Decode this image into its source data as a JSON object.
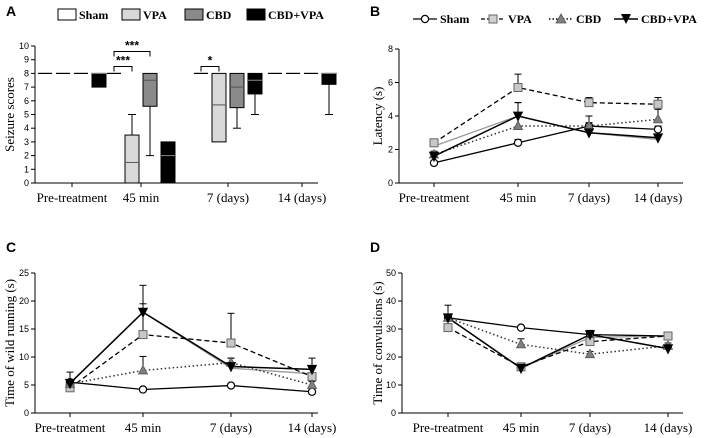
{
  "colors": {
    "sham": "#000000",
    "vpa": "#b8b8b8",
    "cbd": "#7a7a7a",
    "cbdvpa": "#000000",
    "vpa_line": "#000000",
    "cbd_line": "#444444"
  },
  "groups": [
    "Sham",
    "VPA",
    "CBD",
    "CBD+VPA"
  ],
  "legend_lines": [
    "Sham",
    "VPA",
    "CBD",
    "CBD+VPA"
  ],
  "categories": [
    "Pre-treatment",
    "45 min",
    "7 (days)",
    "14 (days)"
  ],
  "chart_data": [
    {
      "panel": "A",
      "type": "box",
      "ylabel": "Seizure scores",
      "ylim": [
        0,
        10
      ],
      "yticks": [
        0,
        1,
        2,
        3,
        4,
        5,
        6,
        7,
        8,
        9,
        10
      ],
      "boxes": [
        [
          {
            "min": 8,
            "q1": 8,
            "median": 8,
            "q3": 8,
            "max": 8
          },
          {
            "min": 8,
            "q1": 8,
            "median": 8,
            "q3": 8,
            "max": 8
          },
          {
            "min": 8,
            "q1": 8,
            "median": 8,
            "q3": 8,
            "max": 8
          },
          {
            "min": 7,
            "q1": 7,
            "median": 8,
            "q3": 8,
            "max": 8
          }
        ],
        [
          {
            "min": 8,
            "q1": 8,
            "median": 8,
            "q3": 8,
            "max": 8
          },
          {
            "min": 0,
            "q1": 0,
            "median": 1.5,
            "q3": 3.5,
            "max": 5
          },
          {
            "min": 2,
            "q1": 5.6,
            "median": 7.5,
            "q3": 8,
            "max": 8
          },
          {
            "min": 0,
            "q1": 0,
            "median": 2,
            "q3": 3,
            "max": 3
          }
        ],
        [
          {
            "min": 8,
            "q1": 8,
            "median": 8,
            "q3": 8,
            "max": 8
          },
          {
            "min": 3,
            "q1": 3,
            "median": 5.7,
            "q3": 8,
            "max": 8
          },
          {
            "min": 4,
            "q1": 5.5,
            "median": 7,
            "q3": 8,
            "max": 8
          },
          {
            "min": 5,
            "q1": 6.5,
            "median": 7.5,
            "q3": 8,
            "max": 8
          }
        ],
        [
          {
            "min": 8,
            "q1": 8,
            "median": 8,
            "q3": 8,
            "max": 8
          },
          {
            "min": 8,
            "q1": 8,
            "median": 8,
            "q3": 8,
            "max": 8
          },
          {
            "min": 8,
            "q1": 8,
            "median": 8,
            "q3": 8,
            "max": 8
          },
          {
            "min": 5,
            "q1": 7.2,
            "median": 8,
            "q3": 8,
            "max": 8
          }
        ]
      ],
      "significance": [
        {
          "label": "***",
          "from_group": 0,
          "to_group": 1,
          "category": 1,
          "y": 8.5
        },
        {
          "label": "***",
          "from_group": 0,
          "to_group": 2,
          "category": 1,
          "y": 9.6
        },
        {
          "label": "*",
          "from_group": 0,
          "to_group": 1,
          "category": 2,
          "y": 8.5
        }
      ]
    },
    {
      "panel": "B",
      "type": "line",
      "ylabel": "Latency (s)",
      "ylim": [
        0,
        8
      ],
      "yticks": [
        0,
        2,
        4,
        6,
        8
      ],
      "series": [
        {
          "name": "Sham",
          "values": [
            1.2,
            2.4,
            3.4,
            3.2
          ],
          "err": [
            0.1,
            0.2,
            0.2,
            0.2
          ]
        },
        {
          "name": "VPA",
          "values": [
            2.4,
            5.7,
            4.8,
            4.7
          ],
          "err": [
            0.1,
            0.8,
            0.3,
            0.4
          ]
        },
        {
          "name": "CBD",
          "values": [
            1.7,
            3.4,
            3.4,
            3.8
          ],
          "err": [
            0.2,
            1.4,
            0.6,
            0.6
          ]
        },
        {
          "name": "CBD+VPA",
          "values": [
            1.6,
            4.0,
            3.0,
            2.7
          ],
          "err": [
            0.2,
            0.8,
            0.3,
            0.2
          ]
        }
      ],
      "grey_line": [
        2.2,
        4.0,
        3.0,
        2.6
      ]
    },
    {
      "panel": "C",
      "type": "line",
      "ylabel": "Time of  wild running (s)",
      "ylim": [
        0,
        25
      ],
      "yticks": [
        0,
        5,
        10,
        15,
        20,
        25
      ],
      "series": [
        {
          "name": "Sham",
          "values": [
            5.5,
            4.2,
            4.9,
            3.8
          ],
          "err": [
            0.3,
            0.2,
            0.2,
            0.2
          ]
        },
        {
          "name": "VPA",
          "values": [
            4.5,
            14.0,
            12.5,
            6.5
          ],
          "err": [
            0.4,
            5.5,
            5.3,
            1.4
          ]
        },
        {
          "name": "CBD",
          "values": [
            5.2,
            7.6,
            9.0,
            5.0
          ],
          "err": [
            0.5,
            2.5,
            0.8,
            0.6
          ]
        },
        {
          "name": "CBD+VPA",
          "values": [
            5.3,
            18.0,
            8.3,
            7.8
          ],
          "err": [
            2.0,
            4.8,
            1.5,
            2.0
          ]
        }
      ],
      "grey_line": [
        5.3,
        18.0,
        8.0,
        7.0
      ]
    },
    {
      "panel": "D",
      "type": "line",
      "ylabel": "Time of  convulsions (s)",
      "ylim": [
        0,
        50
      ],
      "yticks": [
        0,
        10,
        20,
        30,
        40,
        50
      ],
      "series": [
        {
          "name": "Sham",
          "values": [
            34.0,
            30.5,
            28.0,
            27.5
          ],
          "err": [
            1.0,
            0.6,
            0.8,
            0.8
          ]
        },
        {
          "name": "VPA",
          "values": [
            30.5,
            16.5,
            25.5,
            27.5
          ],
          "err": [
            1.0,
            0.6,
            1.5,
            1.0
          ]
        },
        {
          "name": "CBD",
          "values": [
            34.0,
            24.5,
            21.0,
            24.0
          ],
          "err": [
            1.0,
            2.0,
            1.0,
            1.0
          ]
        },
        {
          "name": "CBD+VPA",
          "values": [
            34.0,
            16.0,
            28.0,
            23.0
          ],
          "err": [
            4.5,
            1.0,
            1.5,
            1.0
          ]
        }
      ],
      "grey_line": [
        34.0,
        16.0,
        27.0,
        27.5
      ]
    }
  ]
}
